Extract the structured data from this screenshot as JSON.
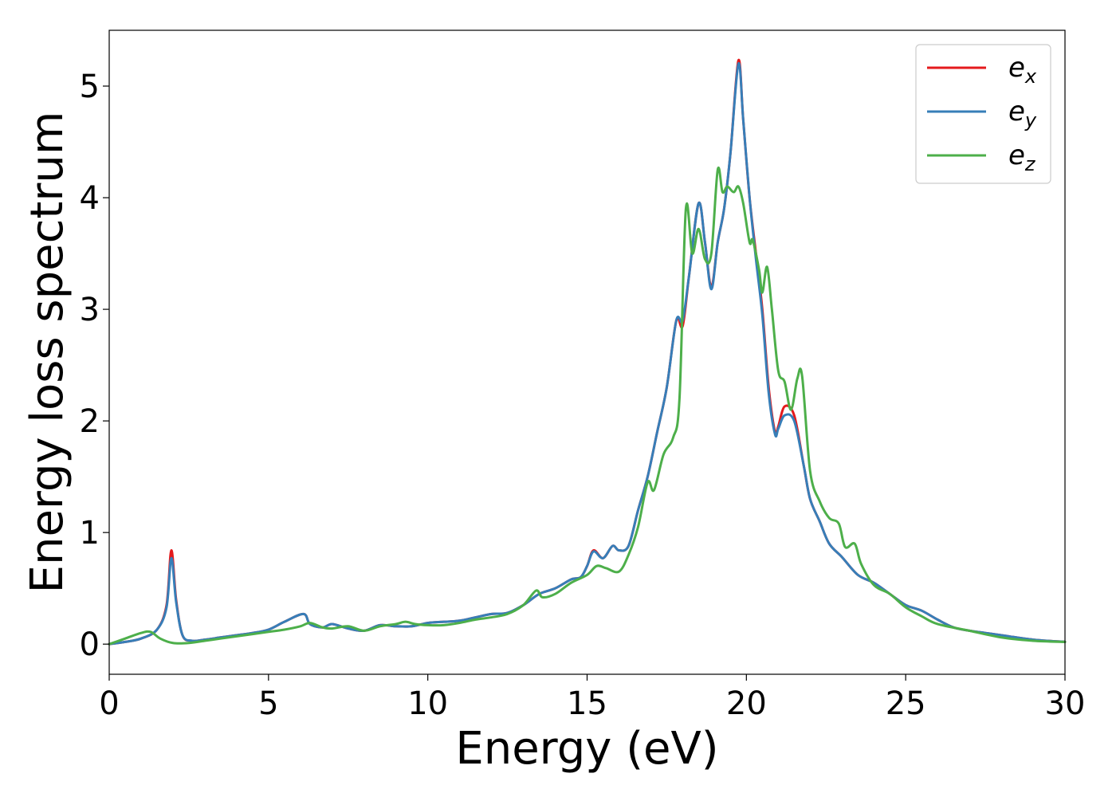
{
  "chart_data": {
    "type": "line",
    "title": "",
    "xlabel": "Energy (eV)",
    "ylabel": "Energy loss spectrum",
    "xlim": [
      0,
      30
    ],
    "ylim": [
      -0.27,
      5.5
    ],
    "xticks": [
      0,
      5,
      10,
      15,
      20,
      25,
      30
    ],
    "yticks": [
      0,
      1,
      2,
      3,
      4,
      5
    ],
    "grid": false,
    "legend_position": "top-right",
    "series": [
      {
        "name": "e_x",
        "label_base": "e",
        "label_sub": "x",
        "color": "#e41a1c",
        "x": [
          0,
          0.5,
          1.0,
          1.5,
          1.8,
          1.95,
          2.1,
          2.3,
          2.6,
          3.0,
          3.5,
          4.0,
          4.5,
          5.0,
          5.5,
          6.1,
          6.3,
          6.7,
          7.0,
          7.5,
          8.0,
          8.5,
          9.0,
          9.5,
          10.0,
          10.5,
          11.0,
          11.5,
          12.0,
          12.5,
          13.0,
          13.5,
          14.0,
          14.5,
          14.8,
          15.0,
          15.2,
          15.5,
          15.8,
          16.0,
          16.3,
          16.6,
          16.9,
          17.2,
          17.5,
          17.8,
          18.0,
          18.2,
          18.5,
          18.7,
          18.9,
          19.1,
          19.3,
          19.5,
          19.75,
          19.9,
          20.1,
          20.3,
          20.5,
          20.7,
          20.9,
          21.0,
          21.2,
          21.5,
          21.8,
          22.0,
          22.3,
          22.6,
          23.0,
          23.5,
          24.0,
          24.5,
          25.0,
          25.5,
          26.0,
          26.5,
          27.0,
          27.5,
          28.0,
          29.0,
          30.0
        ],
        "values": [
          0.0,
          0.02,
          0.05,
          0.13,
          0.35,
          0.84,
          0.4,
          0.08,
          0.03,
          0.04,
          0.06,
          0.08,
          0.1,
          0.13,
          0.2,
          0.27,
          0.18,
          0.15,
          0.18,
          0.14,
          0.12,
          0.17,
          0.16,
          0.16,
          0.19,
          0.2,
          0.21,
          0.24,
          0.27,
          0.28,
          0.35,
          0.45,
          0.5,
          0.58,
          0.6,
          0.7,
          0.84,
          0.77,
          0.88,
          0.84,
          0.88,
          1.2,
          1.5,
          1.9,
          2.3,
          2.9,
          2.85,
          3.3,
          3.95,
          3.6,
          3.2,
          3.6,
          3.9,
          4.4,
          5.23,
          4.7,
          4.0,
          3.5,
          3.0,
          2.3,
          1.9,
          1.95,
          2.13,
          2.05,
          1.6,
          1.3,
          1.1,
          0.9,
          0.78,
          0.62,
          0.55,
          0.45,
          0.35,
          0.3,
          0.22,
          0.15,
          0.12,
          0.1,
          0.08,
          0.04,
          0.02
        ]
      },
      {
        "name": "e_y",
        "label_base": "e",
        "label_sub": "y",
        "color": "#377eb8",
        "x": [
          0,
          0.5,
          1.0,
          1.5,
          1.8,
          1.95,
          2.1,
          2.3,
          2.6,
          3.0,
          3.5,
          4.0,
          4.5,
          5.0,
          5.5,
          6.1,
          6.3,
          6.7,
          7.0,
          7.5,
          8.0,
          8.5,
          9.0,
          9.5,
          10.0,
          10.5,
          11.0,
          11.5,
          12.0,
          12.5,
          13.0,
          13.5,
          14.0,
          14.5,
          14.8,
          15.0,
          15.2,
          15.5,
          15.8,
          16.0,
          16.3,
          16.6,
          16.9,
          17.2,
          17.5,
          17.8,
          18.0,
          18.2,
          18.5,
          18.7,
          18.9,
          19.1,
          19.3,
          19.5,
          19.75,
          19.9,
          20.1,
          20.3,
          20.5,
          20.7,
          20.9,
          21.0,
          21.2,
          21.5,
          21.8,
          22.0,
          22.3,
          22.6,
          23.0,
          23.5,
          24.0,
          24.5,
          25.0,
          25.5,
          26.0,
          26.5,
          27.0,
          27.5,
          28.0,
          29.0,
          30.0
        ],
        "values": [
          0.0,
          0.02,
          0.05,
          0.13,
          0.33,
          0.77,
          0.38,
          0.08,
          0.03,
          0.04,
          0.06,
          0.08,
          0.1,
          0.13,
          0.2,
          0.27,
          0.18,
          0.15,
          0.18,
          0.14,
          0.12,
          0.17,
          0.16,
          0.16,
          0.19,
          0.2,
          0.21,
          0.24,
          0.27,
          0.28,
          0.35,
          0.45,
          0.5,
          0.58,
          0.6,
          0.7,
          0.83,
          0.77,
          0.88,
          0.84,
          0.88,
          1.2,
          1.5,
          1.9,
          2.3,
          2.9,
          2.9,
          3.3,
          3.95,
          3.6,
          3.18,
          3.6,
          3.9,
          4.4,
          5.2,
          4.7,
          4.0,
          3.45,
          2.95,
          2.25,
          1.88,
          1.93,
          2.05,
          2.0,
          1.6,
          1.3,
          1.1,
          0.9,
          0.78,
          0.62,
          0.55,
          0.45,
          0.35,
          0.3,
          0.22,
          0.15,
          0.12,
          0.1,
          0.08,
          0.04,
          0.02
        ]
      },
      {
        "name": "e_z",
        "label_base": "e",
        "label_sub": "z",
        "color": "#4daf4a",
        "x": [
          0,
          0.5,
          1.0,
          1.3,
          1.6,
          2.0,
          2.5,
          3.0,
          3.5,
          4.0,
          4.5,
          5.0,
          5.5,
          6.0,
          6.3,
          6.7,
          7.0,
          7.5,
          8.0,
          8.5,
          9.0,
          9.3,
          9.6,
          10.0,
          10.5,
          11.0,
          11.5,
          12.0,
          12.5,
          13.0,
          13.4,
          13.6,
          14.0,
          14.5,
          15.0,
          15.3,
          15.6,
          16.0,
          16.3,
          16.6,
          16.9,
          17.1,
          17.4,
          17.7,
          17.9,
          18.1,
          18.3,
          18.5,
          18.7,
          18.9,
          19.1,
          19.25,
          19.4,
          19.6,
          19.75,
          19.9,
          20.1,
          20.2,
          20.4,
          20.5,
          20.65,
          20.8,
          21.0,
          21.2,
          21.4,
          21.6,
          21.75,
          22.0,
          22.3,
          22.6,
          22.9,
          23.1,
          23.4,
          23.6,
          24.0,
          24.5,
          25.0,
          25.5,
          26.0,
          27.0,
          28.0,
          29.0,
          30.0
        ],
        "values": [
          0.0,
          0.05,
          0.1,
          0.11,
          0.05,
          0.01,
          0.01,
          0.03,
          0.05,
          0.07,
          0.09,
          0.11,
          0.13,
          0.16,
          0.19,
          0.15,
          0.14,
          0.16,
          0.12,
          0.16,
          0.18,
          0.2,
          0.18,
          0.17,
          0.17,
          0.19,
          0.22,
          0.24,
          0.27,
          0.35,
          0.48,
          0.42,
          0.45,
          0.55,
          0.62,
          0.7,
          0.68,
          0.65,
          0.8,
          1.05,
          1.45,
          1.38,
          1.7,
          1.85,
          2.2,
          3.9,
          3.5,
          3.72,
          3.45,
          3.5,
          4.25,
          4.05,
          4.1,
          4.05,
          4.1,
          3.95,
          3.6,
          3.62,
          3.35,
          3.15,
          3.38,
          3.0,
          2.45,
          2.35,
          2.1,
          2.38,
          2.4,
          1.55,
          1.28,
          1.13,
          1.08,
          0.87,
          0.9,
          0.72,
          0.53,
          0.45,
          0.33,
          0.25,
          0.18,
          0.12,
          0.06,
          0.03,
          0.02
        ]
      }
    ]
  }
}
